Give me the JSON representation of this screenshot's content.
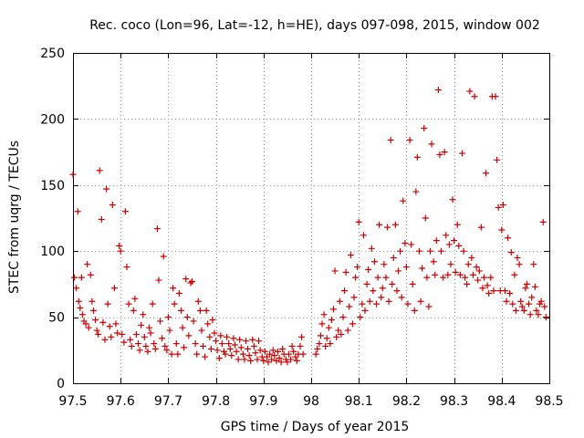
{
  "chart_data": {
    "type": "scatter",
    "title": "Rec. coco (Lon=96, Lat=-12, h=HE), days 097-098, 2015, window 002",
    "xlabel": "GPS time / Days of year 2015",
    "ylabel": "STEC from uqrg / TECUs",
    "xlim": [
      97.5,
      98.5
    ],
    "ylim": [
      0,
      250
    ],
    "xticks": [
      97.5,
      97.6,
      97.7,
      97.8,
      97.9,
      98.0,
      98.1,
      98.2,
      98.3,
      98.4,
      98.5
    ],
    "xtick_labels": [
      "97.5",
      "97.6",
      "97.7",
      "97.8",
      "97.9",
      "98",
      "98.1",
      "98.2",
      "98.3",
      "98.4",
      "98.5"
    ],
    "yticks": [
      0,
      50,
      100,
      150,
      200,
      250
    ],
    "ytick_labels": [
      "0",
      "50",
      "100",
      "150",
      "200",
      "250"
    ],
    "grid": true,
    "marker": "+",
    "color": "#cc0000",
    "series": [
      {
        "name": "STEC",
        "points": [
          [
            97.5,
            158
          ],
          [
            97.503,
            80
          ],
          [
            97.507,
            72
          ],
          [
            97.51,
            130
          ],
          [
            97.512,
            62
          ],
          [
            97.515,
            57
          ],
          [
            97.518,
            80
          ],
          [
            97.52,
            52
          ],
          [
            97.523,
            47
          ],
          [
            97.527,
            45
          ],
          [
            97.53,
            90
          ],
          [
            97.533,
            42
          ],
          [
            97.537,
            82
          ],
          [
            97.54,
            62
          ],
          [
            97.543,
            55
          ],
          [
            97.547,
            48
          ],
          [
            97.55,
            40
          ],
          [
            97.553,
            37
          ],
          [
            97.556,
            161
          ],
          [
            97.56,
            124
          ],
          [
            97.563,
            46
          ],
          [
            97.567,
            33
          ],
          [
            97.57,
            147
          ],
          [
            97.573,
            60
          ],
          [
            97.577,
            43
          ],
          [
            97.58,
            35
          ],
          [
            97.583,
            135
          ],
          [
            97.587,
            72
          ],
          [
            97.59,
            45
          ],
          [
            97.593,
            38
          ],
          [
            97.597,
            104
          ],
          [
            97.6,
            100
          ],
          [
            97.603,
            37
          ],
          [
            97.607,
            31
          ],
          [
            97.61,
            130
          ],
          [
            97.613,
            88
          ],
          [
            97.617,
            60
          ],
          [
            97.62,
            33
          ],
          [
            97.623,
            28
          ],
          [
            97.627,
            55
          ],
          [
            97.63,
            64
          ],
          [
            97.633,
            37
          ],
          [
            97.637,
            30
          ],
          [
            97.64,
            25
          ],
          [
            97.643,
            44
          ],
          [
            97.647,
            52
          ],
          [
            97.65,
            35
          ],
          [
            97.653,
            28
          ],
          [
            97.657,
            24
          ],
          [
            97.66,
            42
          ],
          [
            97.663,
            38
          ],
          [
            97.667,
            60
          ],
          [
            97.67,
            30
          ],
          [
            97.673,
            26
          ],
          [
            97.677,
            117
          ],
          [
            97.68,
            78
          ],
          [
            97.683,
            47
          ],
          [
            97.687,
            34
          ],
          [
            97.69,
            96
          ],
          [
            97.693,
            28
          ],
          [
            97.697,
            25
          ],
          [
            97.7,
            50
          ],
          [
            97.703,
            40
          ],
          [
            97.707,
            22
          ],
          [
            97.71,
            72
          ],
          [
            97.713,
            60
          ],
          [
            97.717,
            30
          ],
          [
            97.72,
            22
          ],
          [
            97.723,
            68
          ],
          [
            97.727,
            55
          ],
          [
            97.73,
            42
          ],
          [
            97.733,
            27
          ],
          [
            97.737,
            79
          ],
          [
            97.74,
            50
          ],
          [
            97.743,
            36
          ],
          [
            97.747,
            76
          ],
          [
            97.75,
            77
          ],
          [
            97.753,
            47
          ],
          [
            97.757,
            30
          ],
          [
            97.76,
            22
          ],
          [
            97.763,
            62
          ],
          [
            97.767,
            55
          ],
          [
            97.77,
            40
          ],
          [
            97.773,
            28
          ],
          [
            97.777,
            20
          ],
          [
            97.78,
            55
          ],
          [
            97.783,
            45
          ],
          [
            97.787,
            35
          ],
          [
            97.79,
            26
          ],
          [
            97.793,
            48
          ],
          [
            97.797,
            38
          ],
          [
            97.8,
            32
          ],
          [
            97.803,
            25
          ],
          [
            97.807,
            19
          ],
          [
            97.81,
            36
          ],
          [
            97.813,
            30
          ],
          [
            97.817,
            24
          ],
          [
            97.82,
            22
          ],
          [
            97.823,
            35
          ],
          [
            97.827,
            30
          ],
          [
            97.83,
            26
          ],
          [
            97.833,
            21
          ],
          [
            97.837,
            34
          ],
          [
            97.84,
            29
          ],
          [
            97.843,
            24
          ],
          [
            97.847,
            18
          ],
          [
            97.85,
            33
          ],
          [
            97.853,
            27
          ],
          [
            97.857,
            22
          ],
          [
            97.86,
            18
          ],
          [
            97.863,
            32
          ],
          [
            97.867,
            26
          ],
          [
            97.87,
            21
          ],
          [
            97.873,
            17
          ],
          [
            97.877,
            33
          ],
          [
            97.88,
            28
          ],
          [
            97.883,
            23
          ],
          [
            97.887,
            18
          ],
          [
            97.89,
            32
          ],
          [
            97.893,
            25
          ],
          [
            97.897,
            20
          ],
          [
            97.9,
            17
          ],
          [
            97.903,
            24
          ],
          [
            97.907,
            20
          ],
          [
            97.91,
            16
          ],
          [
            97.913,
            22
          ],
          [
            97.917,
            18
          ],
          [
            97.92,
            25
          ],
          [
            97.923,
            21
          ],
          [
            97.927,
            17
          ],
          [
            97.93,
            24
          ],
          [
            97.933,
            19
          ],
          [
            97.937,
            16
          ],
          [
            97.94,
            26
          ],
          [
            97.943,
            22
          ],
          [
            97.947,
            18
          ],
          [
            97.95,
            16
          ],
          [
            97.953,
            22
          ],
          [
            97.957,
            18
          ],
          [
            97.96,
            28
          ],
          [
            97.963,
            24
          ],
          [
            97.967,
            20
          ],
          [
            97.97,
            17
          ],
          [
            97.973,
            22
          ],
          [
            97.977,
            28
          ],
          [
            97.98,
            35
          ],
          [
            97.983,
            22
          ],
          [
            98.01,
            22
          ],
          [
            98.013,
            26
          ],
          [
            98.017,
            30
          ],
          [
            98.02,
            36
          ],
          [
            98.023,
            45
          ],
          [
            98.027,
            52
          ],
          [
            98.03,
            28
          ],
          [
            98.033,
            34
          ],
          [
            98.037,
            42
          ],
          [
            98.04,
            30
          ],
          [
            98.043,
            48
          ],
          [
            98.047,
            56
          ],
          [
            98.05,
            85
          ],
          [
            98.053,
            35
          ],
          [
            98.057,
            40
          ],
          [
            98.06,
            62
          ],
          [
            98.063,
            37
          ],
          [
            98.067,
            50
          ],
          [
            98.07,
            70
          ],
          [
            98.073,
            84
          ],
          [
            98.077,
            40
          ],
          [
            98.08,
            58
          ],
          [
            98.083,
            97
          ],
          [
            98.087,
            45
          ],
          [
            98.09,
            65
          ],
          [
            98.093,
            80
          ],
          [
            98.097,
            88
          ],
          [
            98.1,
            122
          ],
          [
            98.103,
            50
          ],
          [
            98.107,
            60
          ],
          [
            98.11,
            112
          ],
          [
            98.113,
            55
          ],
          [
            98.117,
            75
          ],
          [
            98.12,
            86
          ],
          [
            98.123,
            62
          ],
          [
            98.127,
            102
          ],
          [
            98.13,
            70
          ],
          [
            98.133,
            92
          ],
          [
            98.137,
            60
          ],
          [
            98.14,
            80
          ],
          [
            98.143,
            120
          ],
          [
            98.147,
            65
          ],
          [
            98.15,
            72
          ],
          [
            98.153,
            90
          ],
          [
            98.157,
            80
          ],
          [
            98.16,
            118
          ],
          [
            98.163,
            62
          ],
          [
            98.167,
            184
          ],
          [
            98.17,
            75
          ],
          [
            98.173,
            95
          ],
          [
            98.177,
            120
          ],
          [
            98.18,
            70
          ],
          [
            98.183,
            85
          ],
          [
            98.187,
            100
          ],
          [
            98.19,
            65
          ],
          [
            98.193,
            138
          ],
          [
            98.197,
            106
          ],
          [
            98.2,
            88
          ],
          [
            98.203,
            60
          ],
          [
            98.207,
            184
          ],
          [
            98.21,
            105
          ],
          [
            98.213,
            75
          ],
          [
            98.217,
            55
          ],
          [
            98.22,
            145
          ],
          [
            98.223,
            171
          ],
          [
            98.227,
            100
          ],
          [
            98.23,
            62
          ],
          [
            98.233,
            87
          ],
          [
            98.237,
            193
          ],
          [
            98.24,
            125
          ],
          [
            98.243,
            80
          ],
          [
            98.247,
            58
          ],
          [
            98.25,
            100
          ],
          [
            98.253,
            181
          ],
          [
            98.257,
            92
          ],
          [
            98.26,
            82
          ],
          [
            98.263,
            108
          ],
          [
            98.267,
            222
          ],
          [
            98.27,
            173
          ],
          [
            98.273,
            100
          ],
          [
            98.277,
            80
          ],
          [
            98.28,
            175
          ],
          [
            98.283,
            112
          ],
          [
            98.287,
            82
          ],
          [
            98.29,
            105
          ],
          [
            98.293,
            90
          ],
          [
            98.297,
            139
          ],
          [
            98.3,
            108
          ],
          [
            98.303,
            84
          ],
          [
            98.307,
            120
          ],
          [
            98.31,
            104
          ],
          [
            98.313,
            82
          ],
          [
            98.317,
            174
          ],
          [
            98.32,
            100
          ],
          [
            98.323,
            80
          ],
          [
            98.327,
            75
          ],
          [
            98.33,
            90
          ],
          [
            98.333,
            221
          ],
          [
            98.337,
            95
          ],
          [
            98.34,
            82
          ],
          [
            98.343,
            217
          ],
          [
            98.347,
            88
          ],
          [
            98.35,
            78
          ],
          [
            98.353,
            85
          ],
          [
            98.357,
            118
          ],
          [
            98.36,
            72
          ],
          [
            98.363,
            80
          ],
          [
            98.367,
            159
          ],
          [
            98.37,
            74
          ],
          [
            98.373,
            68
          ],
          [
            98.377,
            80
          ],
          [
            98.38,
            217
          ],
          [
            98.383,
            70
          ],
          [
            98.387,
            217
          ],
          [
            98.39,
            169
          ],
          [
            98.393,
            133
          ],
          [
            98.397,
            70
          ],
          [
            98.4,
            116
          ],
          [
            98.403,
            135
          ],
          [
            98.407,
            70
          ],
          [
            98.41,
            62
          ],
          [
            98.413,
            110
          ],
          [
            98.417,
            68
          ],
          [
            98.42,
            99
          ],
          [
            98.423,
            60
          ],
          [
            98.427,
            82
          ],
          [
            98.43,
            55
          ],
          [
            98.433,
            95
          ],
          [
            98.437,
            90
          ],
          [
            98.44,
            62
          ],
          [
            98.443,
            58
          ],
          [
            98.447,
            55
          ],
          [
            98.45,
            72
          ],
          [
            98.453,
            75
          ],
          [
            98.457,
            60
          ],
          [
            98.46,
            52
          ],
          [
            98.463,
            65
          ],
          [
            98.467,
            90
          ],
          [
            98.47,
            73
          ],
          [
            98.473,
            55
          ],
          [
            98.477,
            52
          ],
          [
            98.48,
            60
          ],
          [
            98.483,
            62
          ],
          [
            98.487,
            122
          ],
          [
            98.49,
            58
          ],
          [
            98.493,
            50
          ]
        ]
      }
    ]
  }
}
